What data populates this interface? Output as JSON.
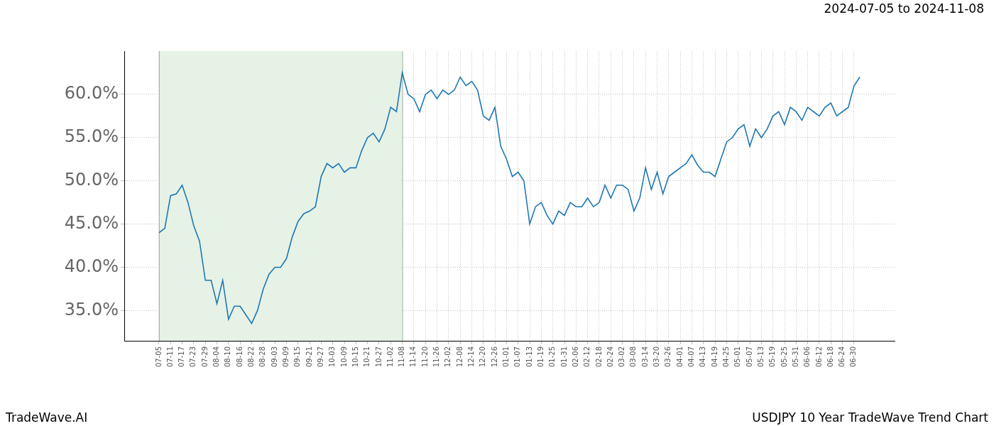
{
  "chart_data": {
    "type": "line",
    "title": "2024-07-05 to 2024-11-08",
    "footer_left": "TradeWave.AI",
    "footer_right": "USDJPY 10 Year TradeWave Trend Chart",
    "color": "#1f77b4",
    "grid": true,
    "highlight": {
      "from": "07-05",
      "to": "11-08",
      "color": "#e6f2e6"
    },
    "ylim": [
      31.5,
      65
    ],
    "yticks": [
      {
        "value": 35,
        "label": "35.0%"
      },
      {
        "value": 40,
        "label": "40.0%"
      },
      {
        "value": 45,
        "label": "45.0%"
      },
      {
        "value": 50,
        "label": "50.0%"
      },
      {
        "value": 55,
        "label": "55.0%"
      },
      {
        "value": 60,
        "label": "60.0%"
      }
    ],
    "categories": [
      null,
      null,
      null,
      null,
      null,
      null,
      "07-05",
      null,
      "07-11",
      null,
      "07-17",
      null,
      "07-23",
      null,
      "07-29",
      null,
      "08-04",
      null,
      "08-10",
      null,
      "08-16",
      null,
      "08-22",
      null,
      "08-28",
      null,
      "09-03",
      null,
      "09-09",
      null,
      "09-15",
      null,
      "09-21",
      null,
      "09-27",
      null,
      "10-03",
      null,
      "10-09",
      null,
      "10-15",
      null,
      "10-21",
      null,
      "10-27",
      null,
      "11-02",
      null,
      "11-08",
      null,
      "11-14",
      null,
      "11-20",
      null,
      "11-26",
      null,
      "12-02",
      null,
      "12-08",
      null,
      "12-14",
      null,
      "12-20",
      null,
      "12-26",
      null,
      "01-01",
      null,
      "01-07",
      null,
      "01-13",
      null,
      "01-19",
      null,
      "01-25",
      null,
      "01-31",
      null,
      "02-06",
      null,
      "02-12",
      null,
      "02-18",
      null,
      "02-24",
      null,
      "03-02",
      null,
      "03-08",
      null,
      "03-14",
      null,
      "03-20",
      null,
      "03-26",
      null,
      "04-01",
      null,
      "04-07",
      null,
      "04-13",
      null,
      "04-19",
      null,
      "04-25",
      null,
      "05-01",
      null,
      "05-07",
      null,
      "05-13",
      null,
      "05-19",
      null,
      "05-25",
      null,
      "05-31",
      null,
      "06-06",
      null,
      "06-12",
      null,
      "06-18",
      null,
      "06-24",
      null,
      "06-30",
      null,
      null,
      null,
      null,
      null,
      null,
      null
    ],
    "values": [
      null,
      null,
      null,
      null,
      null,
      null,
      44.0,
      44.5,
      48.3,
      48.5,
      49.5,
      47.5,
      44.8,
      43.0,
      38.5,
      38.5,
      35.8,
      38.5,
      34.0,
      35.5,
      35.5,
      34.5,
      33.5,
      35.0,
      37.5,
      39.2,
      40.0,
      40.0,
      41.0,
      43.5,
      45.3,
      46.2,
      46.5,
      47.0,
      50.5,
      52.0,
      51.5,
      52.0,
      51.0,
      51.5,
      51.5,
      53.5,
      55.0,
      55.5,
      54.5,
      56.0,
      58.5,
      58.0,
      62.5,
      60.0,
      59.5,
      58.0,
      60.0,
      60.5,
      59.5,
      60.5,
      60.0,
      60.5,
      62.0,
      61.0,
      61.5,
      60.5,
      57.5,
      57.0,
      58.5,
      54.0,
      52.5,
      50.5,
      51.0,
      50.0,
      45.0,
      47.0,
      47.5,
      46.0,
      45.0,
      46.5,
      46.0,
      47.5,
      47.0,
      47.0,
      48.0,
      47.0,
      47.5,
      49.5,
      48.0,
      49.5,
      49.5,
      49.0,
      46.5,
      48.0,
      51.5,
      49.0,
      51.0,
      48.5,
      50.5,
      51.0,
      51.5,
      52.0,
      53.0,
      51.8,
      51.0,
      51.0,
      50.5,
      52.5,
      54.5,
      55.0,
      56.0,
      56.5,
      54.0,
      56.0,
      55.0,
      56.0,
      57.5,
      58.0,
      56.5,
      58.5,
      58.0,
      57.0,
      58.5,
      58.0,
      57.5,
      58.5,
      59.0,
      57.5,
      58.0,
      58.5,
      61.0,
      62.0,
      null,
      null,
      null,
      null,
      null,
      null
    ]
  }
}
